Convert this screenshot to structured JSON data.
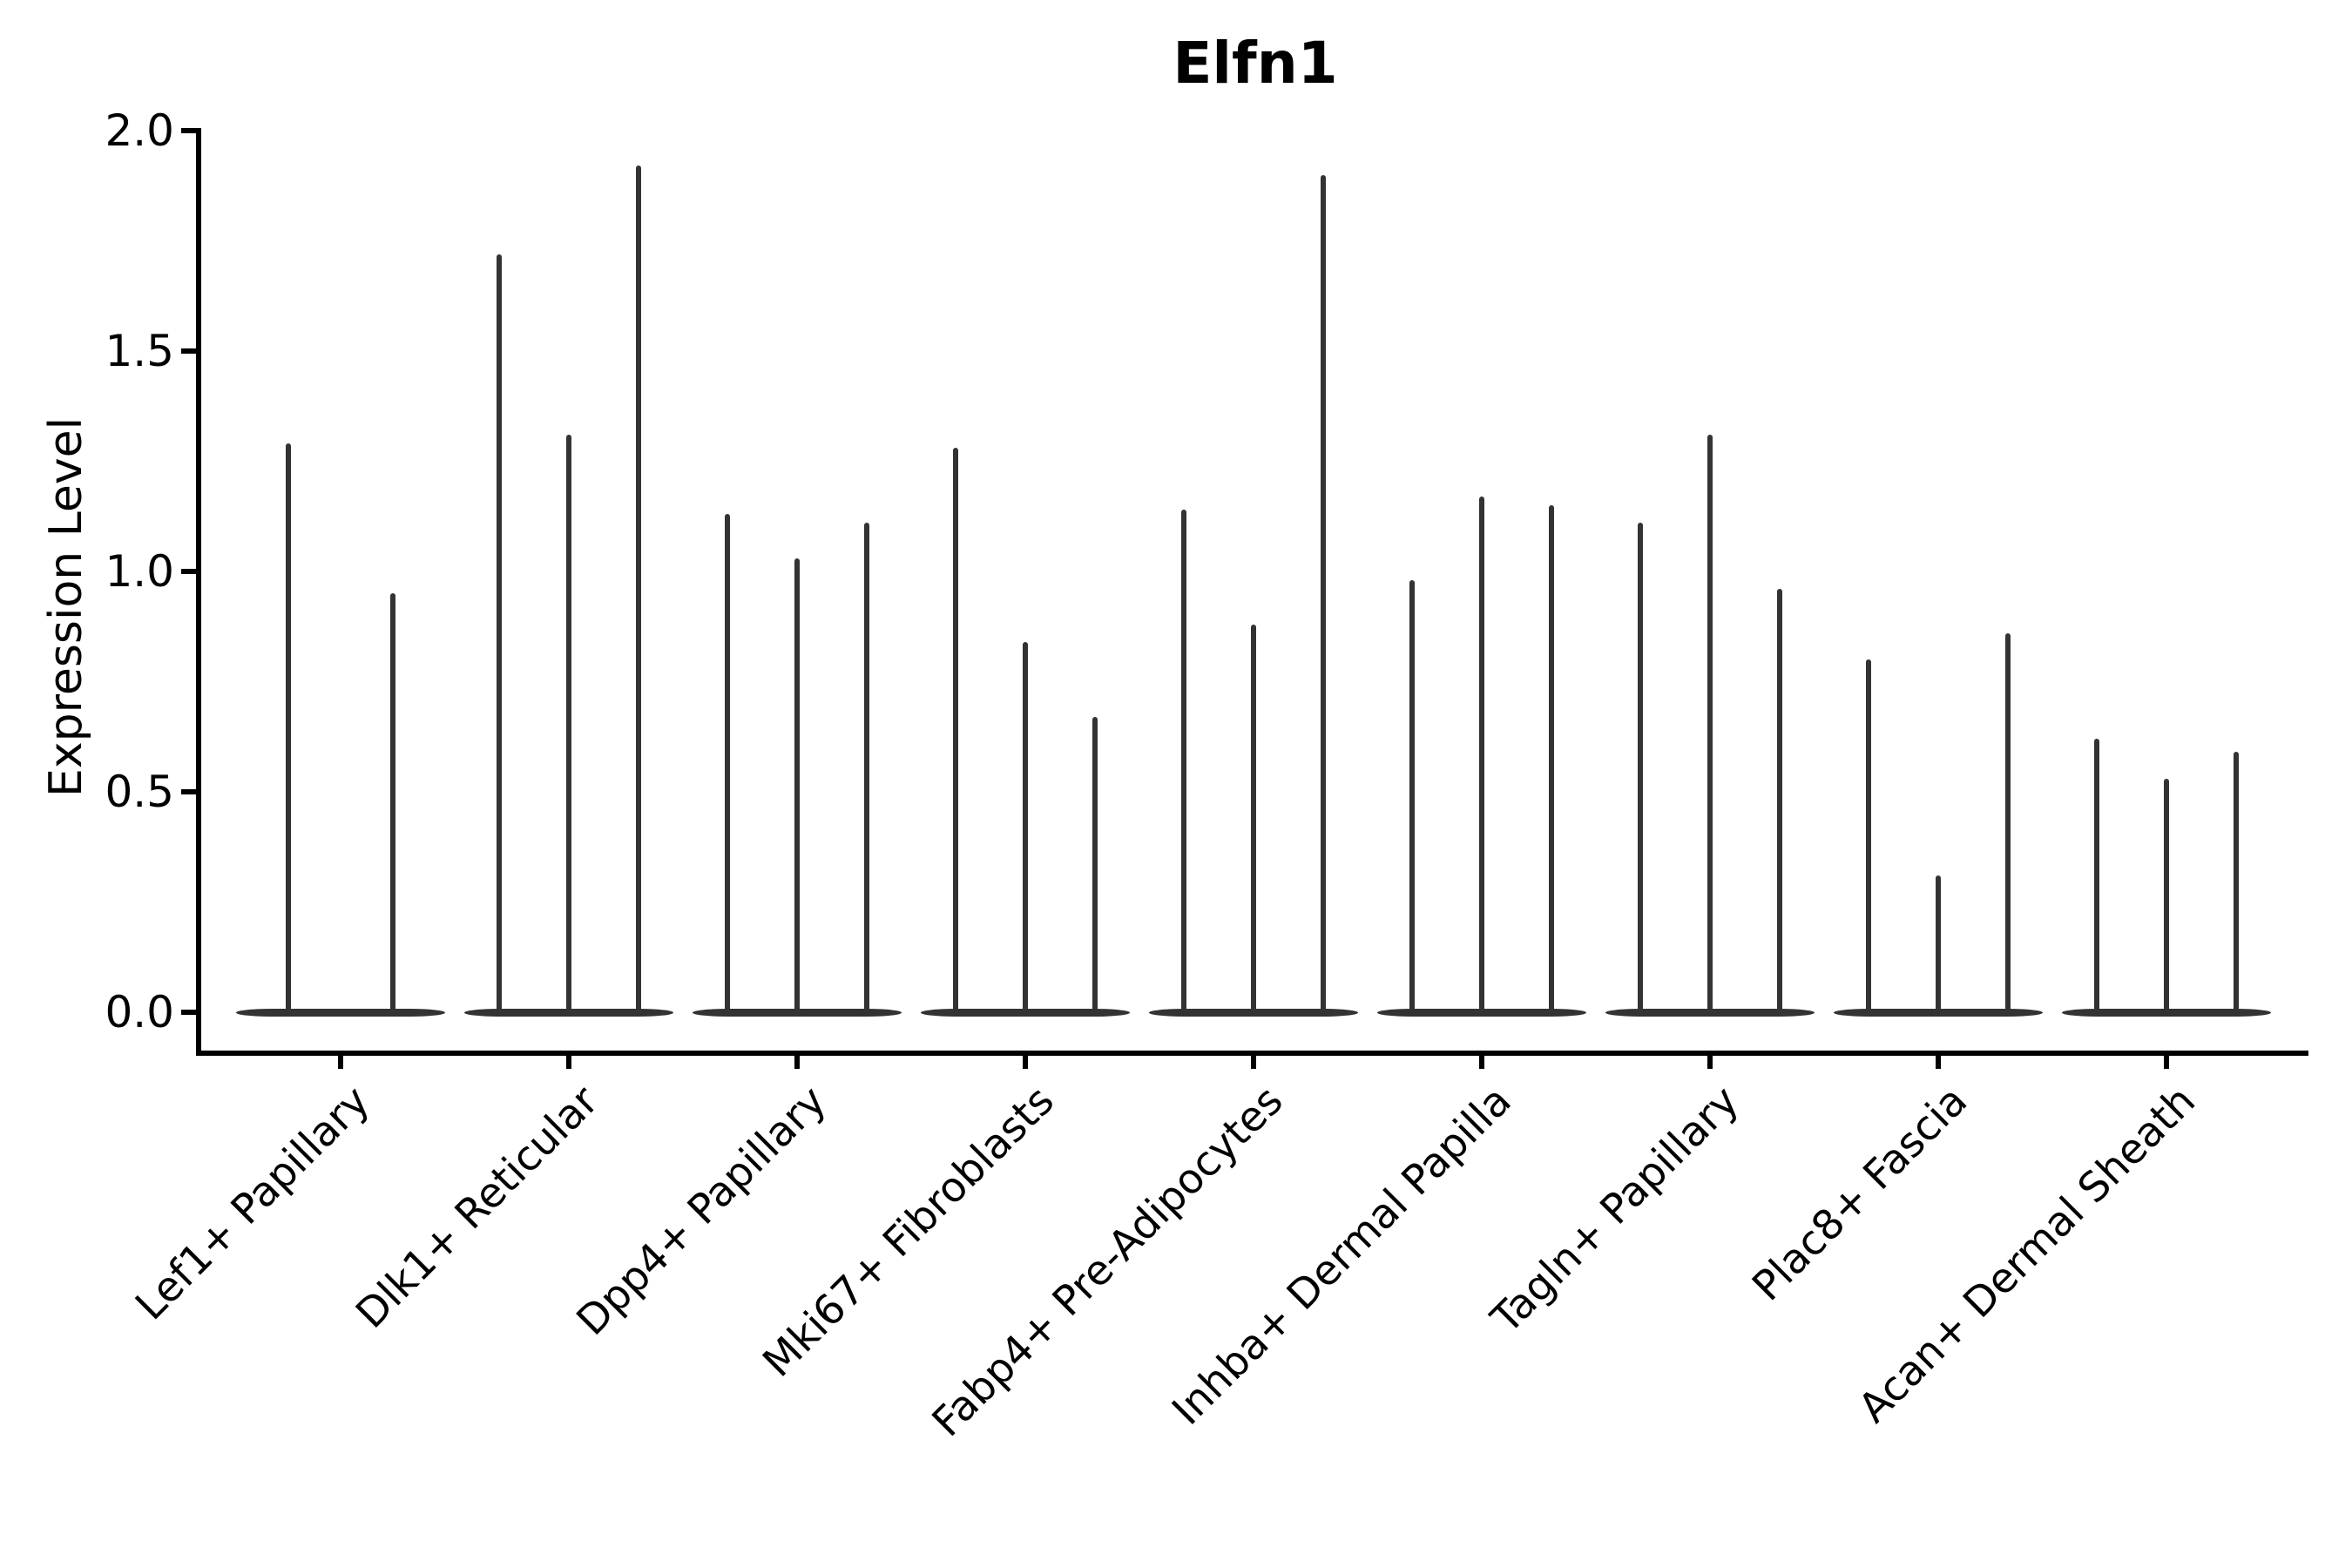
{
  "chart_data": {
    "type": "violin",
    "title": "Elfn1",
    "ylabel": "Expression Level",
    "xlabel": "",
    "ylim": [
      0.0,
      2.0
    ],
    "yticks": [
      "0.0",
      "0.5",
      "1.0",
      "1.5",
      "2.0"
    ],
    "grid": false,
    "legend_position": "none",
    "categories": [
      "Lef1+ Papillary",
      "Dlk1+ Reticular",
      "Dpp4+ Papillary",
      "Mki67+ Fibroblasts",
      "Fabp4+ Pre-Adipocytes",
      "Inhba+ Dermal Papilla",
      "Tagln+ Papillary",
      "Plac8+ Fascia",
      "Acan+ Dermal Sheath"
    ],
    "groups": [
      {
        "category": "Lef1+ Papillary",
        "violin_peaks": [
          1.29,
          0.95
        ]
      },
      {
        "category": "Dlk1+ Reticular",
        "violin_peaks": [
          1.72,
          1.31,
          1.92
        ]
      },
      {
        "category": "Dpp4+ Papillary",
        "violin_peaks": [
          1.13,
          1.03,
          1.11
        ]
      },
      {
        "category": "Mki67+ Fibroblasts",
        "violin_peaks": [
          1.28,
          0.84,
          0.67
        ]
      },
      {
        "category": "Fabp4+ Pre-Adipocytes",
        "violin_peaks": [
          1.14,
          0.88,
          1.9
        ]
      },
      {
        "category": "Inhba+ Dermal Papilla",
        "violin_peaks": [
          0.98,
          1.17,
          1.15
        ]
      },
      {
        "category": "Tagln+ Papillary",
        "violin_peaks": [
          1.11,
          1.31,
          0.96
        ]
      },
      {
        "category": "Plac8+ Fascia",
        "violin_peaks": [
          0.8,
          0.31,
          0.86
        ]
      },
      {
        "category": "Acan+ Dermal Sheath",
        "violin_peaks": [
          0.62,
          0.53,
          0.59
        ]
      }
    ],
    "colors": {
      "violin": "#333333",
      "axis": "#000000",
      "text": "#000000",
      "background": "#ffffff"
    }
  }
}
